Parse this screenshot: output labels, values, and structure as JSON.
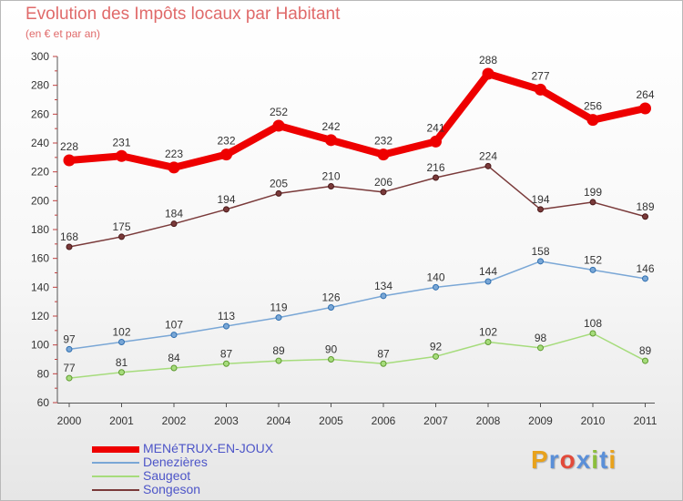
{
  "title": "Evolution des Impôts locaux par Habitant",
  "subtitle": "(en € et par an)",
  "logo_text": "Proxiti",
  "logo_colors": [
    "#e8a21c",
    "#5a8fd8",
    "#e24a3a",
    "#5a8fd8",
    "#8cbe3c",
    "#5a8fd8",
    "#e8a21c"
  ],
  "chart_data": {
    "type": "line",
    "title": "Evolution des Impôts locaux par Habitant",
    "subtitle": "(en € et par an)",
    "xlabel": "",
    "ylabel": "",
    "x": [
      "2000",
      "2001",
      "2002",
      "2003",
      "2004",
      "2005",
      "2006",
      "2007",
      "2008",
      "2009",
      "2010",
      "2011"
    ],
    "ylim": [
      60,
      300
    ],
    "yticks": [
      60,
      80,
      100,
      120,
      140,
      160,
      180,
      200,
      220,
      240,
      260,
      280,
      300
    ],
    "grid": false,
    "legend_position": "bottom-left",
    "series": [
      {
        "name": "MENéTRUX-EN-JOUX",
        "color": "#ee0000",
        "values": [
          228,
          231,
          223,
          232,
          252,
          242,
          232,
          241,
          288,
          277,
          256,
          264
        ]
      },
      {
        "name": "Denezières",
        "color": "#7aa7d6",
        "values": [
          97,
          102,
          107,
          113,
          119,
          126,
          134,
          140,
          144,
          158,
          152,
          146
        ]
      },
      {
        "name": "Saugeot",
        "color": "#a6dc7c",
        "values": [
          77,
          81,
          84,
          87,
          89,
          90,
          87,
          92,
          102,
          98,
          108,
          89
        ]
      },
      {
        "name": "Songeson",
        "color": "#7a3a3a",
        "values": [
          168,
          175,
          184,
          194,
          205,
          210,
          206,
          216,
          224,
          194,
          199,
          189
        ]
      }
    ]
  }
}
